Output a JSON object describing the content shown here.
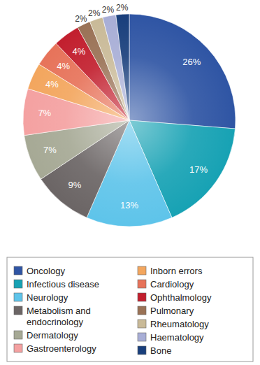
{
  "chart_data": {
    "type": "pie",
    "categories": [
      "Oncology",
      "Infectious disease",
      "Neurology",
      "Metabolism and endocrinology",
      "Dermatology",
      "Gastroenterology",
      "Inborn errors",
      "Cardiology",
      "Ophthalmology",
      "Pulmonary",
      "Rheumatology",
      "Haematology",
      "Bone"
    ],
    "values": [
      26,
      17,
      13,
      9,
      7,
      7,
      4,
      4,
      4,
      2,
      2,
      2,
      2
    ],
    "value_labels": [
      "26%",
      "17%",
      "13%",
      "9%",
      "7%",
      "7%",
      "4%",
      "4%",
      "4%",
      "2%",
      "2%",
      "2%",
      "2%"
    ],
    "colors": [
      "#2f55a4",
      "#17a2b4",
      "#5ec4ea",
      "#6b6565",
      "#a6a995",
      "#f4a1a1",
      "#f3a65e",
      "#e7735a",
      "#c21f2e",
      "#9a7256",
      "#c9ba98",
      "#a8aed6",
      "#193f7c"
    ],
    "data_labels": true,
    "legend": "bottom"
  }
}
